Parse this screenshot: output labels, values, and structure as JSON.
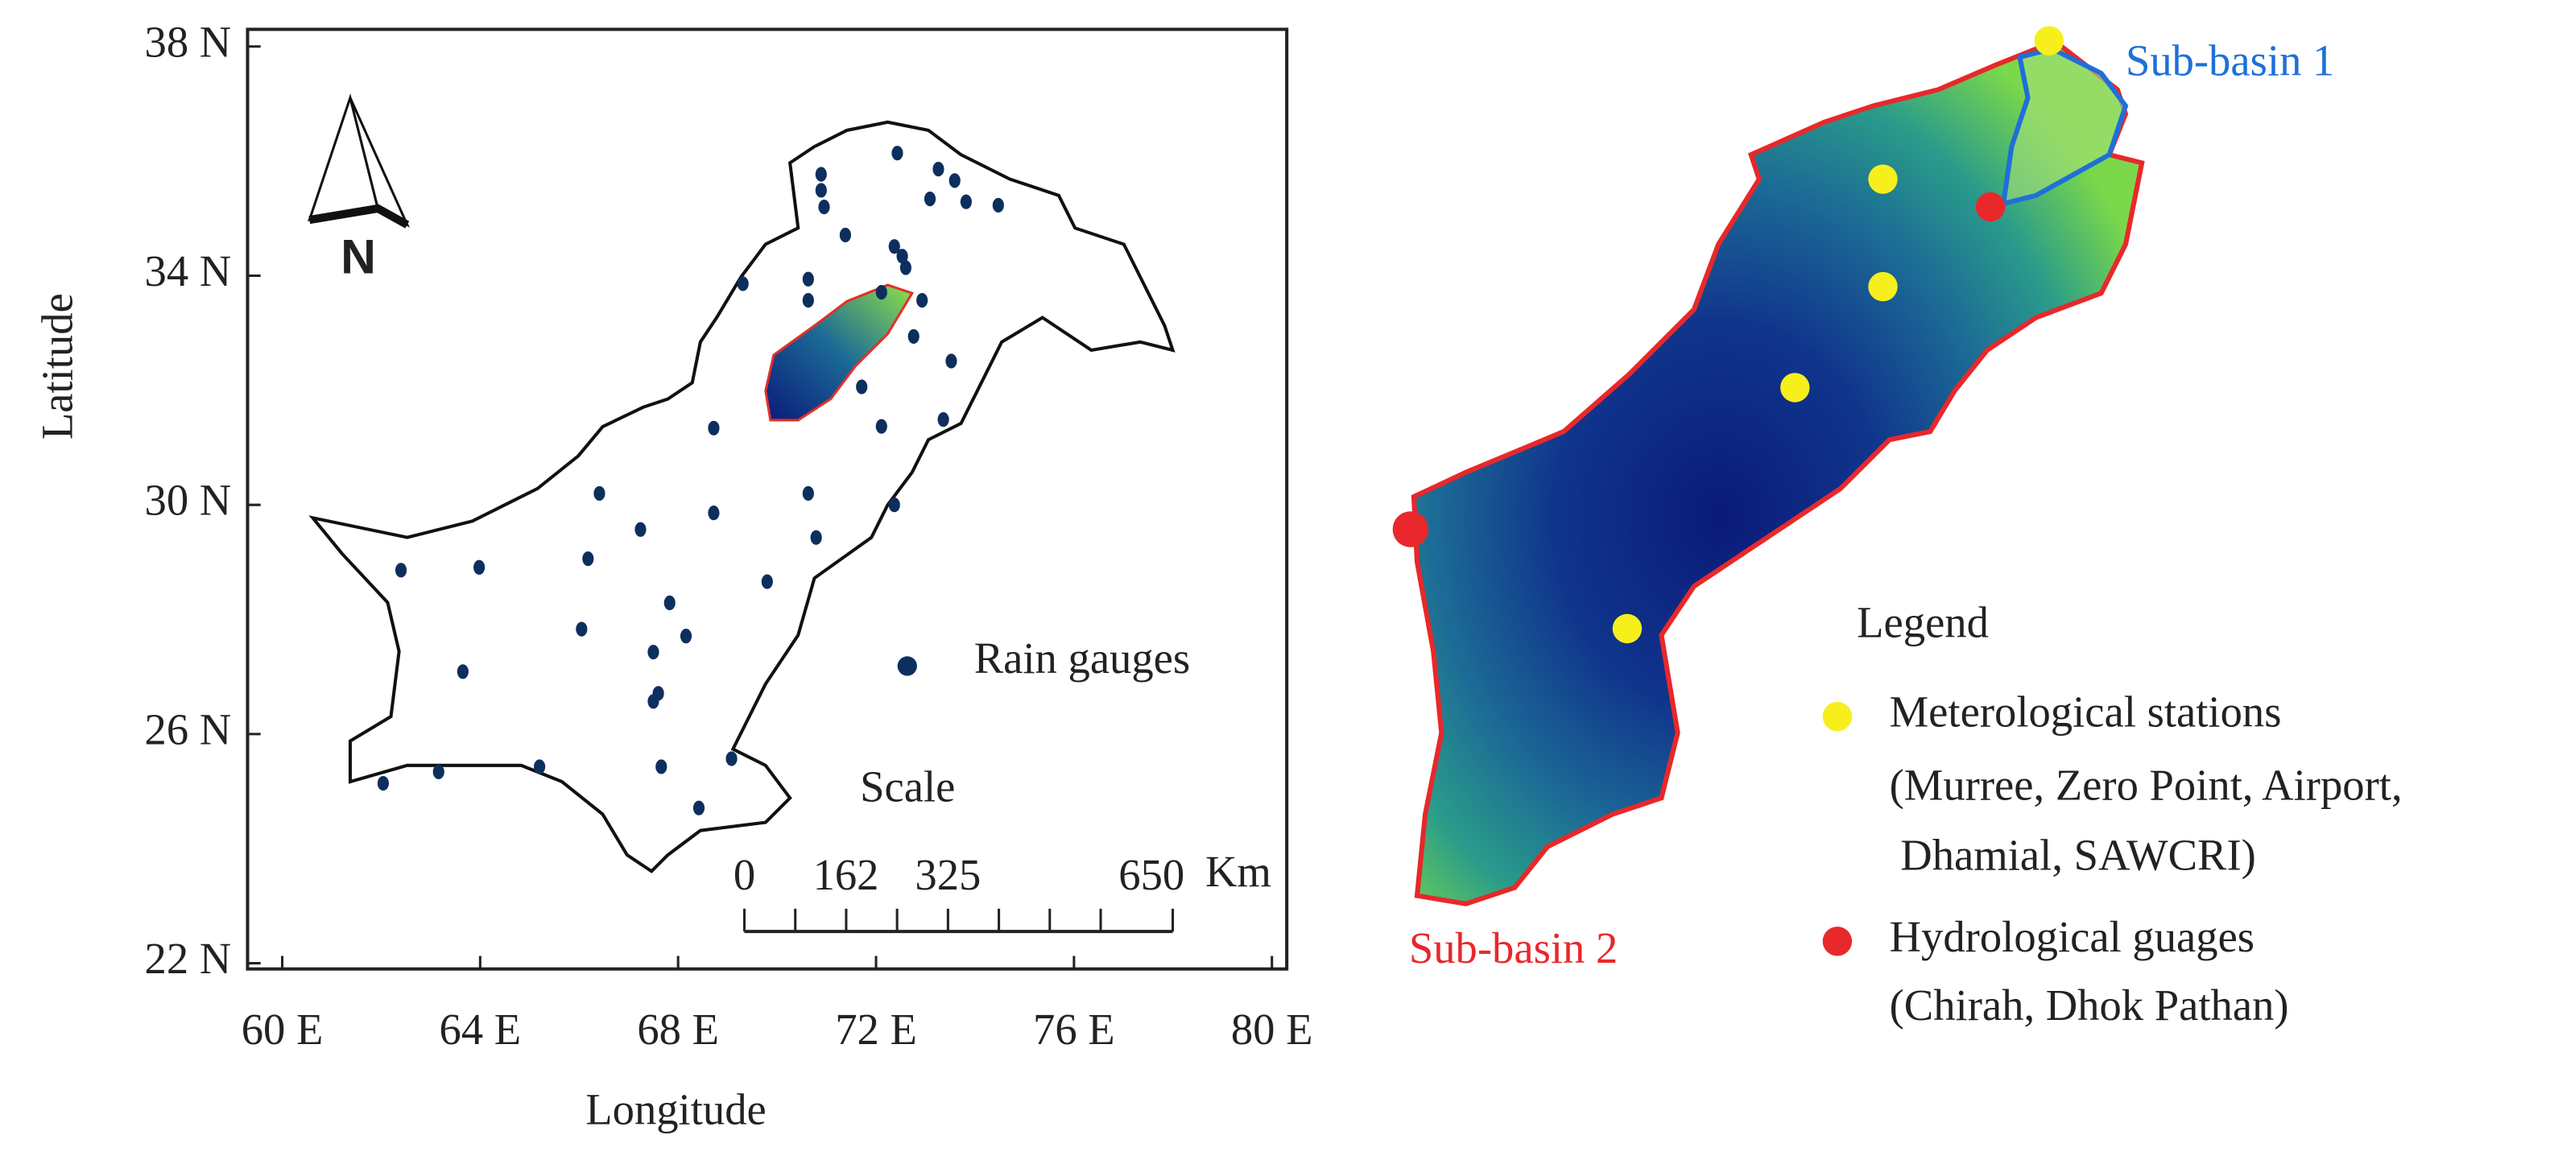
{
  "chart_data": {
    "type": "map",
    "xlabel": "Longitude",
    "ylabel": "Latitude",
    "xlim": [
      59.3,
      80.3
    ],
    "ylim": [
      21.9,
      38.3
    ],
    "xticks": [
      {
        "value": 60,
        "label": "60 E"
      },
      {
        "value": 64,
        "label": "64 E"
      },
      {
        "value": 68,
        "label": "68 E"
      },
      {
        "value": 72,
        "label": "72 E"
      },
      {
        "value": 76,
        "label": "76 E"
      },
      {
        "value": 80,
        "label": "80 E"
      }
    ],
    "yticks": [
      {
        "value": 22,
        "label": "22 N"
      },
      {
        "value": 26,
        "label": "26 N"
      },
      {
        "value": 30,
        "label": "30 N"
      },
      {
        "value": 34,
        "label": "34 N"
      },
      {
        "value": 38,
        "label": "38 N"
      }
    ],
    "series": [
      {
        "name": "Rain gauges",
        "color": "#0d2f5e",
        "x": [
          72.43,
          70.89,
          70.89,
          70.95,
          71.38,
          73.26,
          73.59,
          73.82,
          74.47,
          73.09,
          69.31,
          70.63,
          70.63,
          72.37,
          72.53,
          72.6,
          72.11,
          72.93,
          72.76,
          73.52,
          71.71,
          72.11,
          73.36,
          68.72,
          66.41,
          70.63,
          72.37,
          70.79,
          68.72,
          67.24,
          66.18,
          69.8,
          62.4,
          63.98,
          66.05,
          67.83,
          67.5,
          68.16,
          67.6,
          67.5,
          67.66,
          63.16,
          65.2,
          69.08,
          68.42,
          62.04,
          63.65
        ],
        "y": [
          36.14,
          35.77,
          35.49,
          35.2,
          34.71,
          35.86,
          35.66,
          35.29,
          35.23,
          35.34,
          33.86,
          33.94,
          33.57,
          34.51,
          34.34,
          34.14,
          33.71,
          33.57,
          32.94,
          32.51,
          32.06,
          31.37,
          31.49,
          31.34,
          30.2,
          30.2,
          30.0,
          29.43,
          29.86,
          29.57,
          29.06,
          28.66,
          28.86,
          28.91,
          27.83,
          28.29,
          27.43,
          27.71,
          26.71,
          26.57,
          25.43,
          25.34,
          25.43,
          25.57,
          24.71,
          25.14,
          27.09
        ]
      }
    ],
    "north_label": "N",
    "scale": {
      "title": "Scale",
      "values": [
        0,
        162,
        325,
        650
      ],
      "unit": "Km"
    }
  },
  "basin_map": {
    "sub_basin_1": "Sub-basin 1",
    "sub_basin_2": "Sub-basin 2",
    "legend": {
      "title": "Legend",
      "met_label": "Meterological stations",
      "met_names_1": "(Murree, Zero Point, Airport,",
      "met_names_2": " Dhamial, SAWCRI)",
      "hydro_label": "Hydrological guages",
      "hydro_names": "(Chirah, Dhok Pathan)"
    }
  }
}
